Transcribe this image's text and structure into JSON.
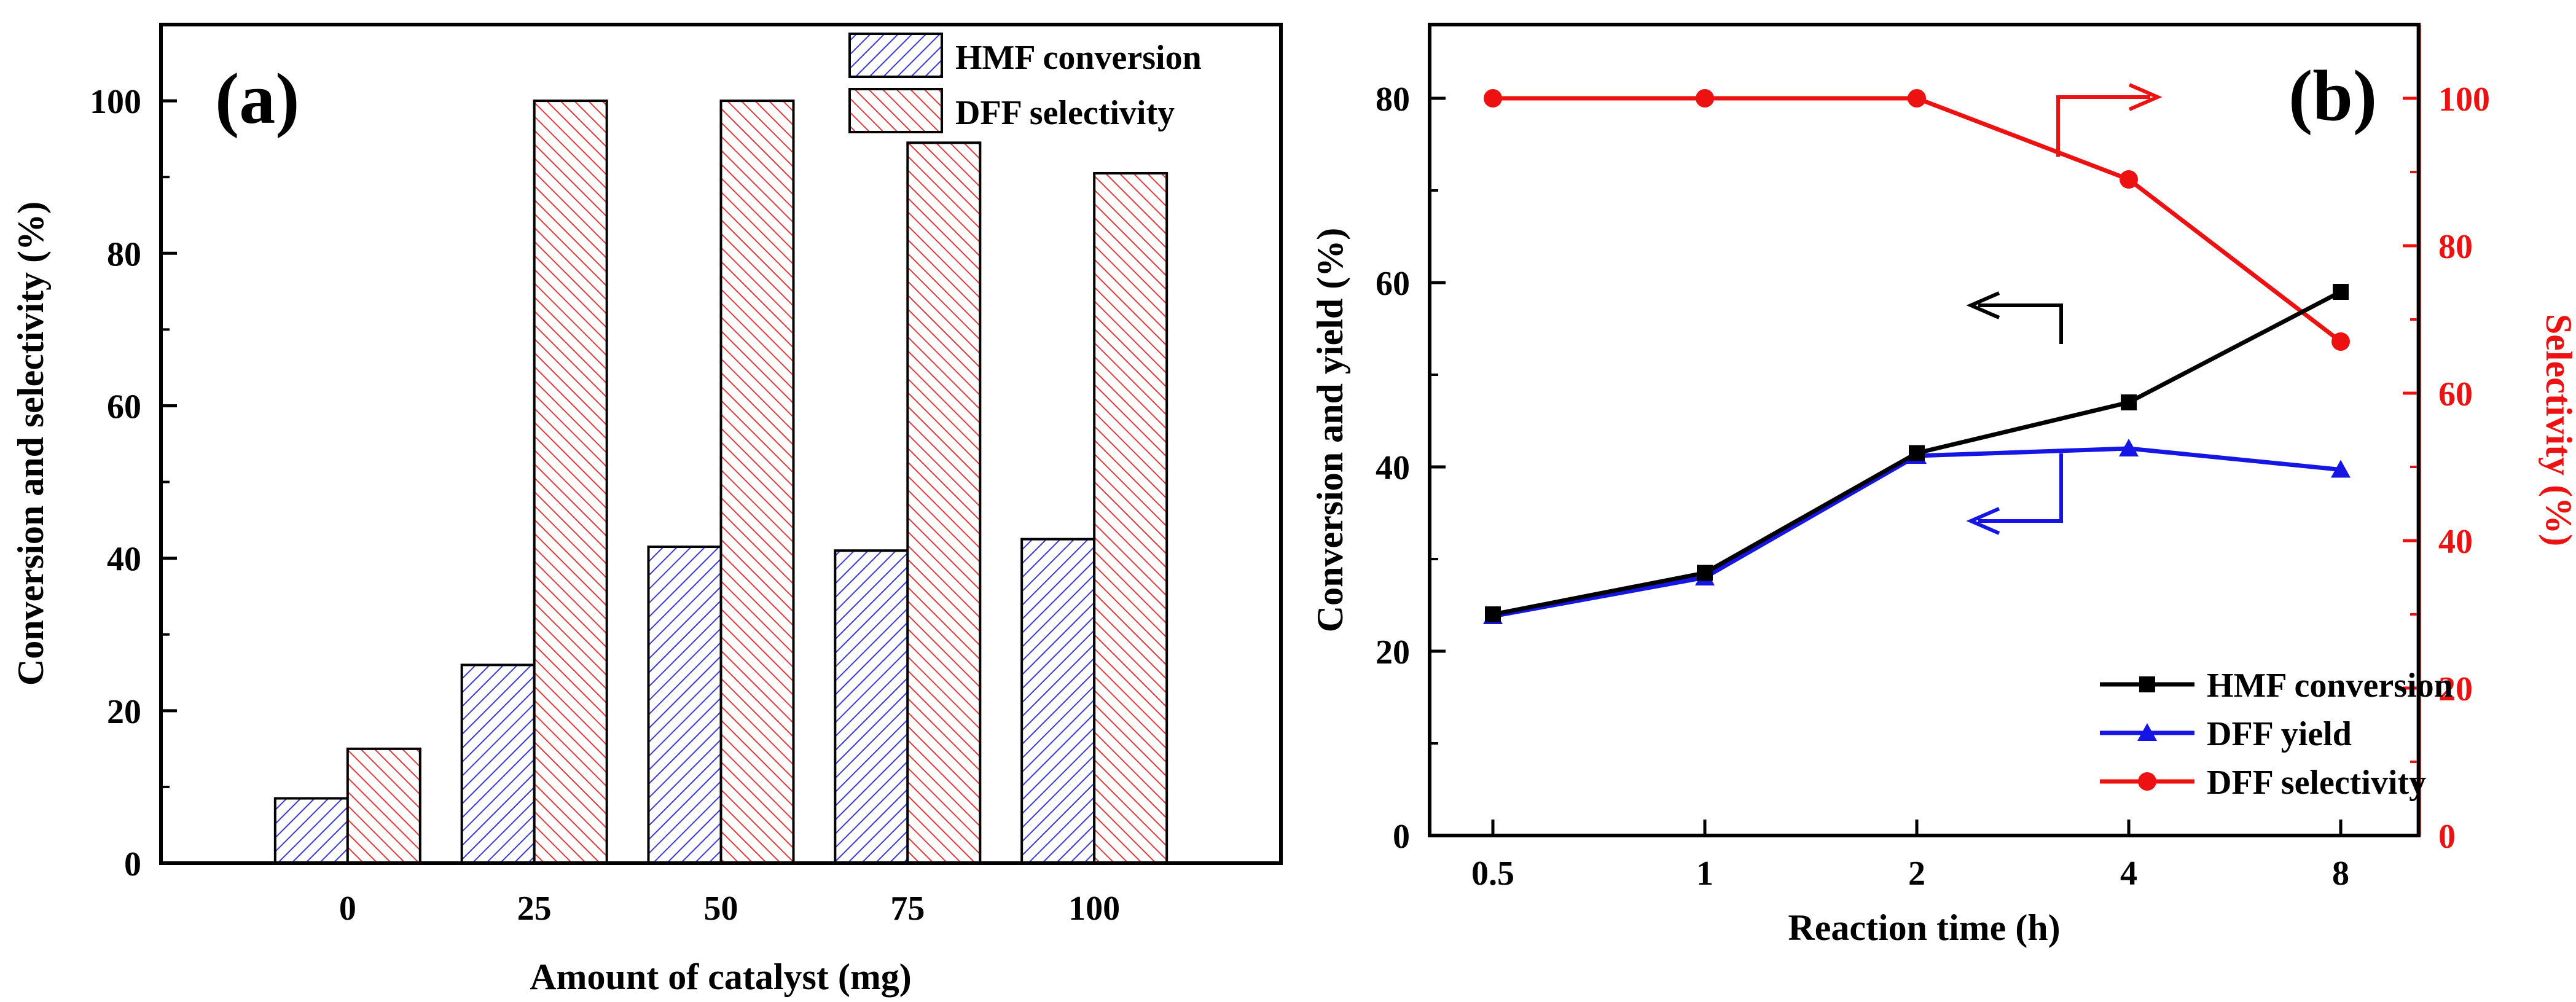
{
  "chart_data": [
    {
      "panel_label": "(a)",
      "type": "bar",
      "xlabel": "Amount of catalyst (mg)",
      "ylabel": "Conversion and selectivity (%)",
      "ylim": [
        0,
        110
      ],
      "yticks": [
        0,
        20,
        40,
        60,
        80,
        100
      ],
      "categories": [
        "0",
        "25",
        "50",
        "75",
        "100"
      ],
      "legend_position": "top-right",
      "series": [
        {
          "name": "HMF conversion",
          "color": "#3a3ad6",
          "pattern": "hatch-forward",
          "values": [
            8.5,
            26,
            41.5,
            41,
            42.5
          ]
        },
        {
          "name": "DFF selectivity",
          "color": "#e63a3a",
          "pattern": "hatch-backward",
          "values": [
            15,
            100,
            100,
            94.5,
            90.5
          ]
        }
      ]
    },
    {
      "panel_label": "(b)",
      "type": "line",
      "xlabel": "Reaction time (h)",
      "ylabel": "Conversion and yield (%)",
      "ylabel_right": "Selectivity (%)",
      "x": [
        "0.5",
        "1",
        "2",
        "4",
        "8"
      ],
      "ylim": [
        0,
        88
      ],
      "yticks": [
        0,
        20,
        40,
        60,
        80
      ],
      "ylim_right": [
        0,
        110
      ],
      "yticks_right": [
        0,
        20,
        40,
        60,
        80,
        100
      ],
      "legend_position": "bottom-right",
      "series": [
        {
          "name": "HMF conversion",
          "axis": "left",
          "color": "#000000",
          "marker": "square",
          "values": [
            24,
            28.5,
            41.5,
            47,
            59
          ]
        },
        {
          "name": "DFF yield",
          "axis": "left",
          "color": "#1515e6",
          "marker": "triangle",
          "values": [
            23.8,
            28,
            41.2,
            42,
            39.7
          ]
        },
        {
          "name": "DFF selectivity",
          "axis": "right",
          "color": "#ee1111",
          "marker": "circle",
          "values": [
            100,
            100,
            100,
            89,
            67
          ]
        }
      ],
      "arrow_annotations": [
        {
          "points_to": "right",
          "series": "DFF selectivity"
        },
        {
          "points_to": "left",
          "series": "HMF conversion"
        },
        {
          "points_to": "left",
          "series": "DFF yield"
        }
      ]
    }
  ]
}
